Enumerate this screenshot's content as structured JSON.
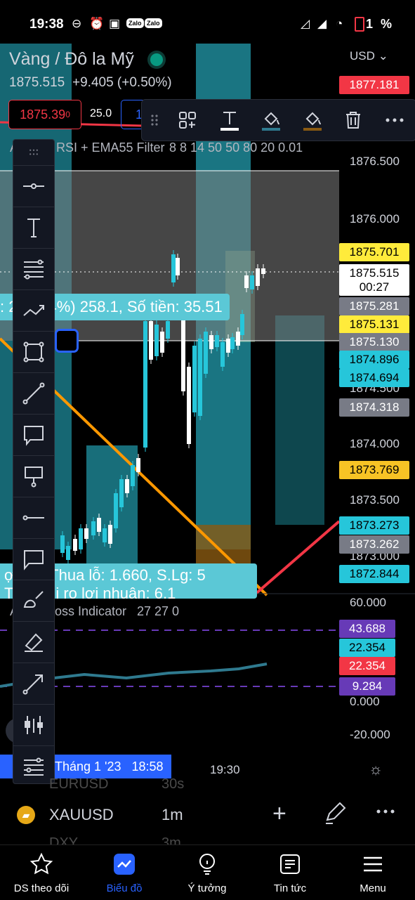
{
  "status_bar": {
    "time": "19:38",
    "battery": "1",
    "battery_unit": "%",
    "zalo_1": "Zalo",
    "zalo_2": "Zalo"
  },
  "header": {
    "symbol_name": "Vàng / Đô la Mỹ",
    "last_price": "1875.515",
    "change": "+9.405 (+0.50%)",
    "currency": "USD",
    "sell_price": "1875.39",
    "sell_price_sup": "0",
    "spread": "25.0",
    "buy_price_partial": "18"
  },
  "indicator_legend": {
    "prefix": "A",
    "name": "RSI + EMA55 Filter",
    "params": "8 8 14 50 50 80 20 0.01"
  },
  "price_axis": {
    "labels": [
      "1876.500",
      "1876.000",
      "1874.500",
      "1874.000",
      "1873.500",
      "1873.000"
    ],
    "boxes": [
      {
        "value": "1877.181",
        "color": "#f23645",
        "text": "#fff"
      },
      {
        "value": "1875.701",
        "color": "#ffeb3b",
        "text": "#000"
      },
      {
        "value": "1875.515",
        "sub": "00:27",
        "color": "#ffffff",
        "text": "#000"
      },
      {
        "value": "1875.281",
        "color": "#787b86",
        "text": "#fff"
      },
      {
        "value": "1875.131",
        "color": "#ffeb3b",
        "text": "#000"
      },
      {
        "value": "1875.130",
        "color": "#787b86",
        "text": "#fff"
      },
      {
        "value": "1874.896",
        "color": "#26c6da",
        "text": "#000"
      },
      {
        "value": "1874.694",
        "color": "#26c6da",
        "text": "#000"
      },
      {
        "value": "1874.318",
        "color": "#787b86",
        "text": "#fff"
      },
      {
        "value": "1873.769",
        "color": "#f7c325",
        "text": "#000"
      },
      {
        "value": "1873.273",
        "color": "#26c6da",
        "text": "#000"
      },
      {
        "value": "1873.262",
        "color": "#787b86",
        "text": "#fff"
      },
      {
        "value": "1872.844",
        "color": "#26c6da",
        "text": "#000"
      }
    ]
  },
  "ruler": {
    "text": ": 2 (0.14%) 258.1, Số tiền: 35.51"
  },
  "pnl": {
    "line1": "ợi      n & Thua lỗ: 1.660, S.Lg: 5",
    "line2": "Tỷ lệ rủi ro lợi nhuận: 6.1"
  },
  "sub_indicator": {
    "name_prefix": "A",
    "name": "oss Indicator",
    "params": "27 27 0",
    "axis": [
      "60.000",
      "0.000",
      "-20.000"
    ],
    "boxes": [
      {
        "value": "43.688",
        "color": "#673ab7",
        "text": "#fff"
      },
      {
        "value": "22.354",
        "color": "#26c6da",
        "text": "#000"
      },
      {
        "value": "22.354",
        "color": "#f23645",
        "text": "#fff"
      },
      {
        "value": "9.284",
        "color": "#673ab7",
        "text": "#fff"
      }
    ]
  },
  "time_axis": {
    "cursor": "Tháng 1 '23   18:58",
    "label": "19:30"
  },
  "drawing_tools": [
    "horizontal-ray",
    "text",
    "fib-retracement",
    "path",
    "rectangle",
    "trend-line",
    "callout",
    "balloon",
    "horizontal-line",
    "comment",
    "brush",
    "highlighter",
    "arrow",
    "long-position",
    "fib-levels"
  ],
  "symbol_bar": {
    "symbol": "XAUUSD",
    "interval": "1m",
    "ghost_top": "EURUSD",
    "ghost_top_val": "30s",
    "ghost_bottom": "DXY",
    "ghost_bottom_val": "3m"
  },
  "tabs": [
    {
      "label": "DS theo dõi",
      "icon": "star-icon"
    },
    {
      "label": "Biểu đồ",
      "icon": "chart-icon",
      "active": true
    },
    {
      "label": "Ý tưởng",
      "icon": "lightbulb-icon"
    },
    {
      "label": "Tin tức",
      "icon": "news-icon"
    },
    {
      "label": "Menu",
      "icon": "menu-icon"
    }
  ],
  "colors": {
    "accent": "#2962ff",
    "teal": "#26c6da",
    "red": "#f23645",
    "yellow": "#ffeb3b",
    "orange": "#ff9800"
  }
}
